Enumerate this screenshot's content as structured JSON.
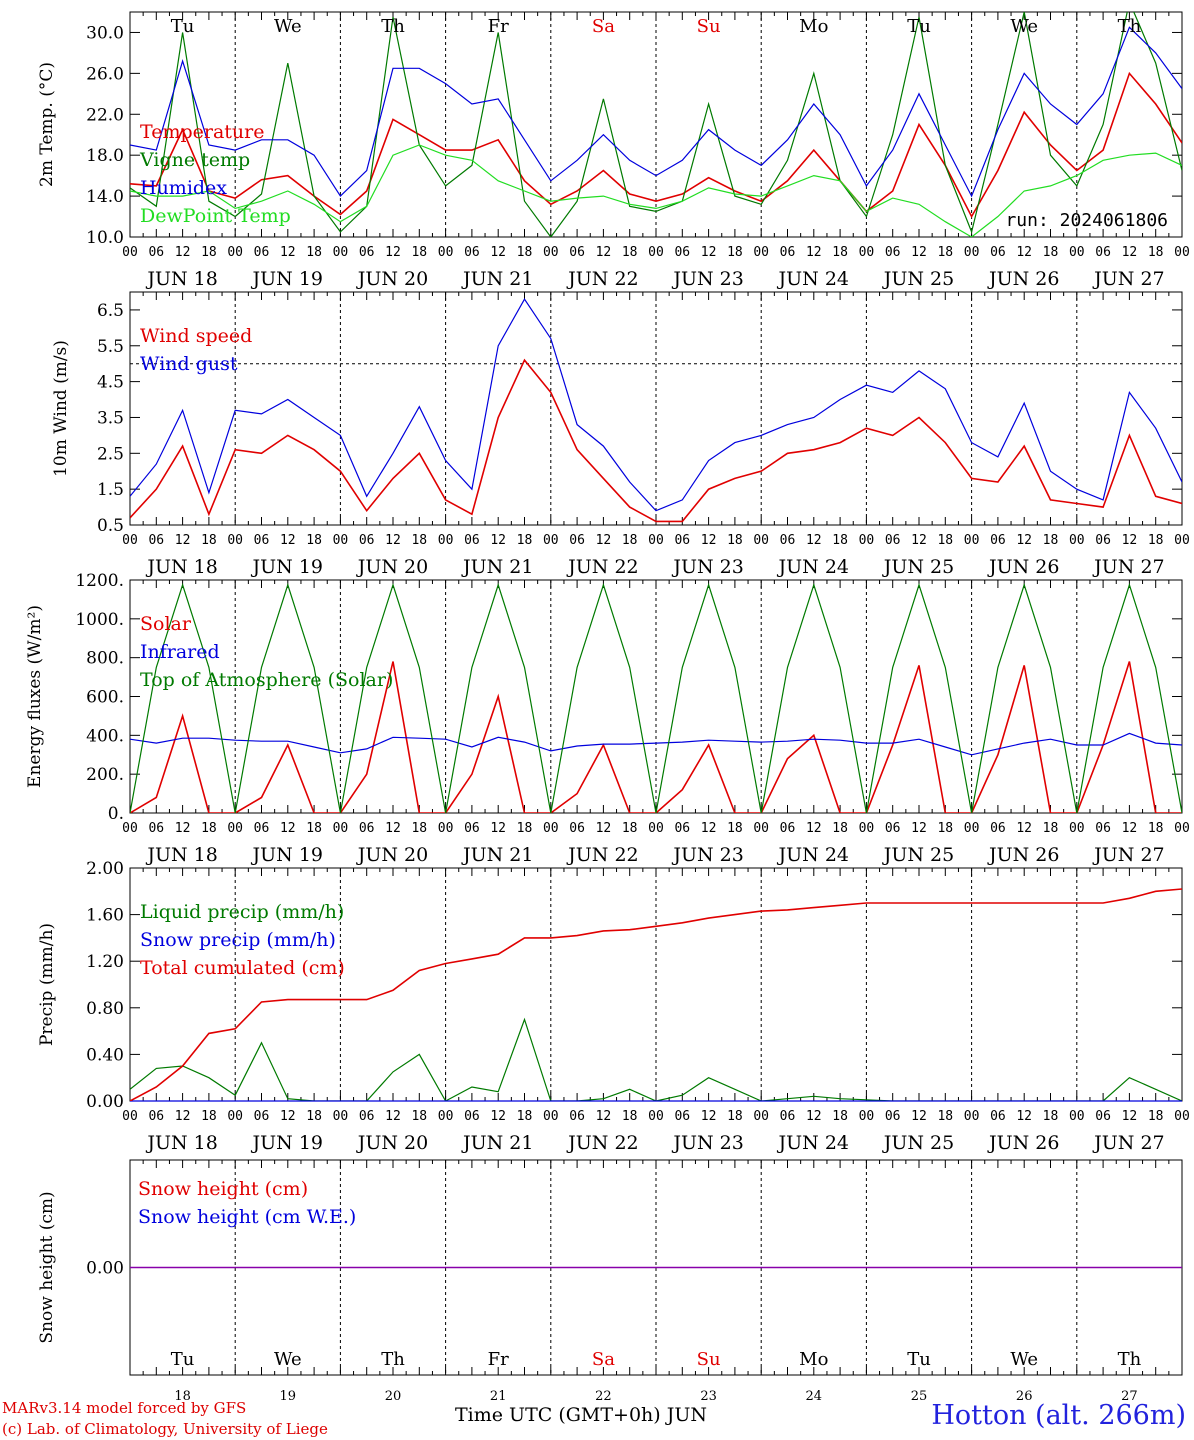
{
  "run_label": "run: 2024061806",
  "footer": {
    "credit_model": "MARv3.14 model forced by GFS",
    "credit_lab": "(c) Lab. of Climatology, University of Liege",
    "x_title": "Time UTC (GMT+0h) JUN",
    "station": "Hotton (alt. 266m)"
  },
  "colors": {
    "red": "#e00000",
    "blue": "#0000dd",
    "green": "#007a00",
    "lightgreen": "#22dd22",
    "purple": "#8800aa"
  },
  "days": [
    {
      "dow": "Tu",
      "date": "JUN 18",
      "num": "18",
      "weekend": false
    },
    {
      "dow": "We",
      "date": "JUN 19",
      "num": "19",
      "weekend": false
    },
    {
      "dow": "Th",
      "date": "JUN 20",
      "num": "20",
      "weekend": false
    },
    {
      "dow": "Fr",
      "date": "JUN 21",
      "num": "21",
      "weekend": false
    },
    {
      "dow": "Sa",
      "date": "JUN 22",
      "num": "22",
      "weekend": true
    },
    {
      "dow": "Su",
      "date": "JUN 23",
      "num": "23",
      "weekend": true
    },
    {
      "dow": "Mo",
      "date": "JUN 24",
      "num": "24",
      "weekend": false
    },
    {
      "dow": "Tu",
      "date": "JUN 25",
      "num": "25",
      "weekend": false
    },
    {
      "dow": "We",
      "date": "JUN 26",
      "num": "26",
      "weekend": false
    },
    {
      "dow": "Th",
      "date": "JUN 27",
      "num": "27",
      "weekend": false
    }
  ],
  "hour_ticks": [
    "00",
    "06",
    "12",
    "18"
  ],
  "chart_data": [
    {
      "type": "line",
      "ylabel": "2m Temp. (°C)",
      "ylim": [
        10,
        32
      ],
      "yticks": [
        "10.0",
        "14.0",
        "18.0",
        "22.0",
        "26.0",
        "30.0"
      ],
      "x": "hours since JUN 18 00 UTC, step 6h (0..240)",
      "series": [
        {
          "name": "Temperature",
          "color": "red",
          "values": [
            15.2,
            15.0,
            20.5,
            14.5,
            13.8,
            15.6,
            16.0,
            14.0,
            12.2,
            14.5,
            21.5,
            20.0,
            18.5,
            18.5,
            19.5,
            15.5,
            13.2,
            14.5,
            16.5,
            14.2,
            13.5,
            14.2,
            15.8,
            14.5,
            13.5,
            15.5,
            18.5,
            15.5,
            12.5,
            14.5,
            21.0,
            17.0,
            12.0,
            16.5,
            22.2,
            19.0,
            16.5,
            18.5,
            26.0,
            23.0,
            19.2
          ]
        },
        {
          "name": "Vigne temp",
          "color": "green",
          "values": [
            14.8,
            13.0,
            30.0,
            13.5,
            12.0,
            14.2,
            27.0,
            14.0,
            10.5,
            13.0,
            31.5,
            19.0,
            15.0,
            17.0,
            30.0,
            13.5,
            10.0,
            13.5,
            23.5,
            13.0,
            12.5,
            13.5,
            23.0,
            14.0,
            13.2,
            17.5,
            26.0,
            15.5,
            12.0,
            20.0,
            31.5,
            17.0,
            10.5,
            21.0,
            32.0,
            18.0,
            15.0,
            21.0,
            33.0,
            27.0,
            16.5
          ]
        },
        {
          "name": "Humidex",
          "color": "blue",
          "values": [
            19.0,
            18.5,
            27.2,
            19.0,
            18.5,
            19.5,
            19.5,
            18.0,
            14.0,
            16.5,
            26.5,
            26.5,
            25.0,
            23.0,
            23.5,
            19.5,
            15.5,
            17.5,
            20.0,
            17.5,
            16.0,
            17.5,
            20.5,
            18.5,
            17.0,
            19.5,
            23.0,
            20.0,
            15.0,
            18.5,
            24.0,
            19.0,
            14.0,
            20.5,
            26.0,
            23.0,
            21.0,
            24.0,
            30.5,
            28.0,
            24.5
          ]
        },
        {
          "name": "DewPoint Temp",
          "color": "lightgreen",
          "values": [
            14.5,
            14.0,
            14.0,
            14.5,
            12.8,
            13.5,
            14.5,
            13.2,
            11.5,
            13.0,
            18.0,
            19.0,
            18.0,
            17.5,
            15.5,
            14.5,
            13.5,
            13.8,
            14.0,
            13.2,
            12.8,
            13.5,
            14.8,
            14.2,
            14.0,
            15.0,
            16.0,
            15.5,
            12.5,
            13.8,
            13.2,
            11.5,
            10.0,
            12.0,
            14.5,
            15.0,
            16.0,
            17.5,
            18.0,
            18.2,
            17.0
          ]
        }
      ]
    },
    {
      "type": "line",
      "ylabel": "10m Wind (m/s)",
      "ylim": [
        0.5,
        7.0
      ],
      "yticks": [
        "0.5",
        "1.5",
        "2.5",
        "3.5",
        "4.5",
        "5.5",
        "6.5"
      ],
      "reference_line": 5.0,
      "series": [
        {
          "name": "Wind speed",
          "color": "red",
          "values": [
            0.7,
            1.5,
            2.7,
            0.8,
            2.6,
            2.5,
            3.0,
            2.6,
            2.0,
            0.9,
            1.8,
            2.5,
            1.2,
            0.8,
            3.5,
            5.1,
            4.2,
            2.6,
            1.8,
            1.0,
            0.6,
            0.6,
            1.5,
            1.8,
            2.0,
            2.5,
            2.6,
            2.8,
            3.2,
            3.0,
            3.5,
            2.8,
            1.8,
            1.7,
            2.7,
            1.2,
            1.1,
            1.0,
            3.0,
            1.3,
            1.1
          ]
        },
        {
          "name": "Wind gust",
          "color": "blue",
          "values": [
            1.3,
            2.2,
            3.7,
            1.4,
            3.7,
            3.6,
            4.0,
            3.5,
            3.0,
            1.3,
            2.5,
            3.8,
            2.3,
            1.5,
            5.5,
            6.8,
            5.7,
            3.3,
            2.7,
            1.7,
            0.9,
            1.2,
            2.3,
            2.8,
            3.0,
            3.3,
            3.5,
            4.0,
            4.4,
            4.2,
            4.8,
            4.3,
            2.8,
            2.4,
            3.9,
            2.0,
            1.5,
            1.2,
            4.2,
            3.2,
            1.7
          ]
        }
      ]
    },
    {
      "type": "line",
      "ylabel": "Energy fluxes (W/m²)",
      "ylim": [
        0,
        1200
      ],
      "yticks": [
        "0.",
        "200.",
        "400.",
        "600.",
        "800.",
        "1000.",
        "1200."
      ],
      "series": [
        {
          "name": "Solar",
          "color": "red",
          "values": [
            0,
            80,
            500,
            0,
            0,
            80,
            350,
            0,
            0,
            200,
            780,
            0,
            0,
            200,
            600,
            0,
            0,
            100,
            350,
            0,
            0,
            120,
            350,
            0,
            0,
            280,
            400,
            0,
            0,
            350,
            760,
            0,
            0,
            300,
            760,
            0,
            0,
            350,
            780,
            0,
            0
          ]
        },
        {
          "name": "Infrared",
          "color": "blue",
          "values": [
            380,
            360,
            385,
            385,
            375,
            370,
            370,
            340,
            310,
            330,
            390,
            385,
            380,
            340,
            390,
            365,
            320,
            345,
            355,
            355,
            360,
            365,
            375,
            370,
            365,
            370,
            380,
            375,
            360,
            360,
            380,
            340,
            300,
            330,
            360,
            380,
            350,
            350,
            410,
            360,
            350
          ]
        },
        {
          "name": "Top of Atmosphere (Solar)",
          "color": "green",
          "values": [
            0,
            750,
            1175,
            750,
            0,
            750,
            1175,
            750,
            0,
            750,
            1175,
            750,
            0,
            750,
            1175,
            750,
            0,
            750,
            1175,
            750,
            0,
            750,
            1175,
            750,
            0,
            750,
            1175,
            750,
            0,
            750,
            1175,
            750,
            0,
            750,
            1175,
            750,
            0,
            750,
            1175,
            750,
            0
          ]
        }
      ]
    },
    {
      "type": "line",
      "ylabel": "Precip (mm/h)",
      "ylim": [
        0,
        2.0
      ],
      "yticks": [
        "0.00",
        "0.40",
        "0.80",
        "1.20",
        "1.60",
        "2.00"
      ],
      "series": [
        {
          "name": "Liquid precip (mm/h)",
          "color": "green",
          "values": [
            0.1,
            0.28,
            0.3,
            0.2,
            0.05,
            0.5,
            0.02,
            0.0,
            0.0,
            0.0,
            0.25,
            0.4,
            0.0,
            0.12,
            0.08,
            0.7,
            0.0,
            0.0,
            0.02,
            0.1,
            0.0,
            0.05,
            0.2,
            0.1,
            0.0,
            0.02,
            0.04,
            0.02,
            0.01,
            0.0,
            0.0,
            0.0,
            0.0,
            0.0,
            0.0,
            0.0,
            0.0,
            0.0,
            0.2,
            0.1,
            0.0
          ]
        },
        {
          "name": "Snow precip (mm/h)",
          "color": "blue",
          "values": [
            0,
            0,
            0,
            0,
            0,
            0,
            0,
            0,
            0,
            0,
            0,
            0,
            0,
            0,
            0,
            0,
            0,
            0,
            0,
            0,
            0,
            0,
            0,
            0,
            0,
            0,
            0,
            0,
            0,
            0,
            0,
            0,
            0,
            0,
            0,
            0,
            0,
            0,
            0,
            0,
            0
          ]
        },
        {
          "name": "Total cumulated (cm)",
          "color": "red",
          "values": [
            0.0,
            0.12,
            0.3,
            0.58,
            0.62,
            0.85,
            0.87,
            0.87,
            0.87,
            0.87,
            0.95,
            1.12,
            1.18,
            1.22,
            1.26,
            1.4,
            1.4,
            1.42,
            1.46,
            1.47,
            1.5,
            1.53,
            1.57,
            1.6,
            1.63,
            1.64,
            1.66,
            1.68,
            1.7,
            1.7,
            1.7,
            1.7,
            1.7,
            1.7,
            1.7,
            1.7,
            1.7,
            1.7,
            1.74,
            1.8,
            1.82
          ]
        }
      ]
    },
    {
      "type": "line",
      "ylabel": "Snow height (cm)",
      "ylim": [
        -1,
        1
      ],
      "yticks": [
        "0.00"
      ],
      "series": [
        {
          "name": "Snow height (cm)",
          "color": "red",
          "values": [
            0,
            0
          ]
        },
        {
          "name": "Snow height (cm W.E.)",
          "color": "blue",
          "values": [
            0,
            0
          ]
        }
      ]
    }
  ]
}
